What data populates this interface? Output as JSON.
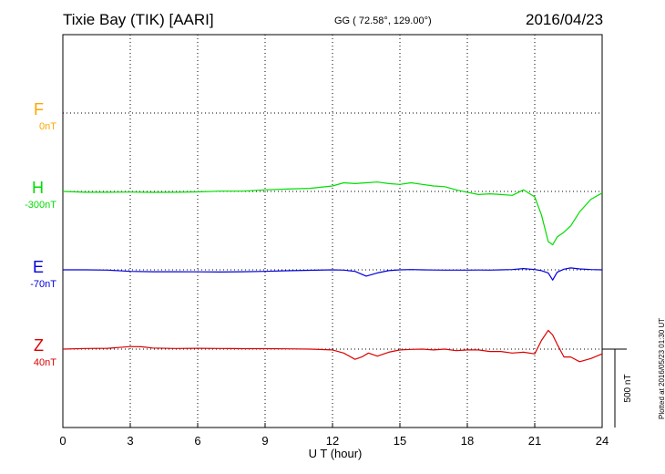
{
  "header": {
    "station": "Tixie Bay (TIK)  [AARI]",
    "coords": "GG ( 72.58°, 129.00°)",
    "date": "2016/04/23"
  },
  "plotted": "Plotted at 2016/05/23 01:30 UT",
  "scale_label": "500 nT",
  "components": [
    {
      "name": "F",
      "baseline": "0nT",
      "color": "#ffa500"
    },
    {
      "name": "H",
      "baseline": "-300nT",
      "color": "#00dd00"
    },
    {
      "name": "E",
      "baseline": "-70nT",
      "color": "#0000dd"
    },
    {
      "name": "Z",
      "baseline": "40nT",
      "color": "#dd0000"
    }
  ],
  "chart_data": {
    "type": "line",
    "xlabel": "U T (hour)",
    "xlim": [
      0,
      24
    ],
    "xticks": [
      "0",
      "3",
      "6",
      "9",
      "12",
      "15",
      "18",
      "21",
      "24"
    ],
    "grid": true,
    "scale_bar_nT": 500,
    "series": [
      {
        "name": "H",
        "color": "#00dd00",
        "x": [
          0,
          1,
          2,
          3,
          4,
          5,
          6,
          7,
          8,
          9,
          10,
          11,
          12,
          12.5,
          13,
          13.5,
          14,
          14.5,
          15,
          15.5,
          16,
          16.5,
          17,
          17.5,
          18,
          18.5,
          19,
          19.5,
          20,
          20.5,
          21,
          21.3,
          21.6,
          21.8,
          22,
          22.3,
          22.6,
          23,
          23.5,
          24
        ],
        "y": [
          -300,
          -305,
          -305,
          -304,
          -306,
          -305,
          -303,
          -298,
          -298,
          -290,
          -285,
          -280,
          -265,
          -245,
          -250,
          -245,
          -240,
          -250,
          -255,
          -245,
          -255,
          -265,
          -270,
          -290,
          -305,
          -320,
          -315,
          -320,
          -325,
          -290,
          -335,
          -450,
          -620,
          -640,
          -590,
          -560,
          -520,
          -430,
          -350,
          -310
        ]
      },
      {
        "name": "E",
        "color": "#0000dd",
        "x": [
          0,
          1,
          2,
          3,
          4,
          5,
          6,
          7,
          8,
          9,
          10,
          11,
          12,
          12.5,
          13,
          13.5,
          14,
          14.5,
          15,
          15.5,
          16,
          16.5,
          17,
          17.5,
          18,
          18.5,
          19,
          19.5,
          20,
          20.5,
          21,
          21.3,
          21.6,
          21.8,
          22,
          22.3,
          22.6,
          23,
          23.5,
          24
        ],
        "y": [
          -70,
          -70,
          -72,
          -80,
          -82,
          -82,
          -83,
          -84,
          -82,
          -80,
          -76,
          -73,
          -70,
          -72,
          -80,
          -110,
          -90,
          -75,
          -70,
          -68,
          -70,
          -71,
          -72,
          -72,
          -72,
          -71,
          -72,
          -70,
          -68,
          -62,
          -68,
          -75,
          -90,
          -135,
          -85,
          -66,
          -58,
          -64,
          -68,
          -70
        ]
      },
      {
        "name": "Z",
        "color": "#dd0000",
        "x": [
          0,
          1,
          2,
          3,
          3.5,
          4,
          5,
          6,
          7,
          8,
          9,
          10,
          11,
          12,
          12.5,
          13,
          13.3,
          13.6,
          14,
          14.5,
          15,
          15.5,
          16,
          16.5,
          17,
          17.5,
          18,
          18.5,
          19,
          19.5,
          20,
          20.5,
          21,
          21.3,
          21.6,
          21.8,
          22,
          22.3,
          22.6,
          23,
          23.5,
          24
        ],
        "y": [
          40,
          44,
          45,
          56,
          55,
          47,
          44,
          45,
          44,
          43,
          43,
          42,
          40,
          35,
          15,
          -25,
          -10,
          15,
          -5,
          20,
          35,
          38,
          40,
          35,
          40,
          30,
          35,
          35,
          25,
          25,
          15,
          20,
          10,
          95,
          160,
          130,
          70,
          -10,
          -10,
          -40,
          -20,
          10
        ]
      }
    ]
  }
}
